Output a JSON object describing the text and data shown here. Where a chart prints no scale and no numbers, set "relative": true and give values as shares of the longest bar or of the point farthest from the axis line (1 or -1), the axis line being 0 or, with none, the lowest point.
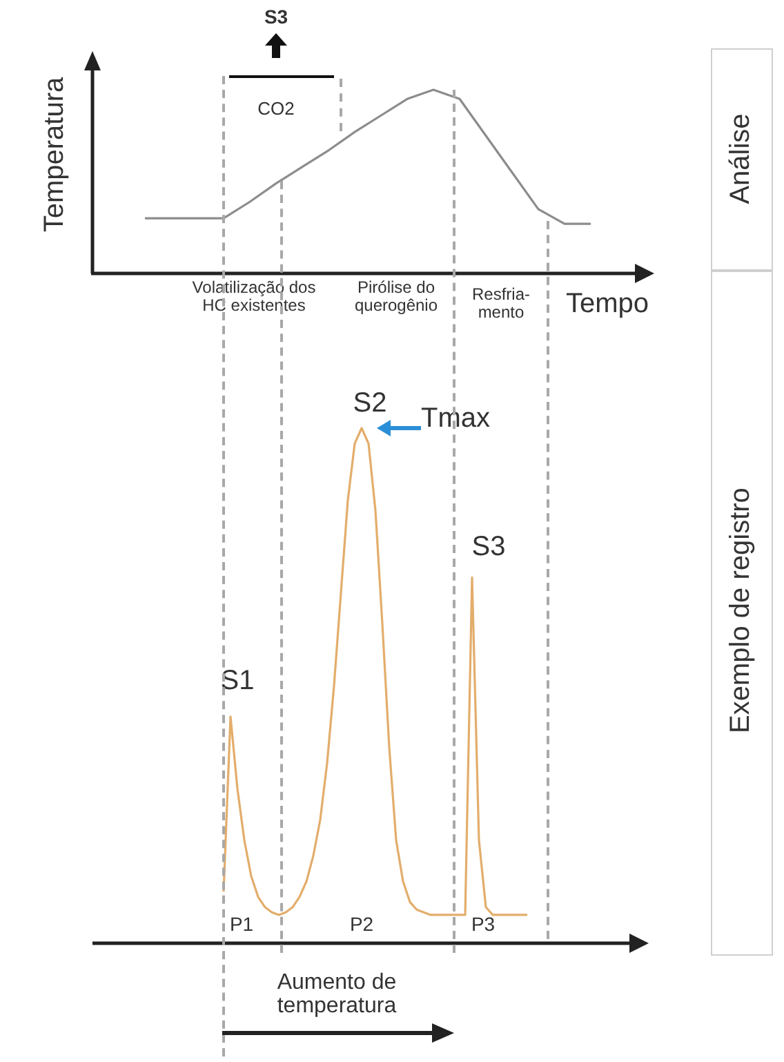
{
  "chart_data": [
    {
      "type": "line",
      "xlabel": "Tempo",
      "ylabel": "Temperatura",
      "relative": true,
      "legend": false,
      "grid": false,
      "tick_labels": false,
      "marker": "none",
      "color": "#8c8c8c",
      "categories": [
        null,
        null,
        null,
        null,
        null,
        null,
        null,
        null,
        null,
        null,
        null,
        null,
        null,
        null,
        null,
        null,
        null,
        null,
        null,
        null,
        null,
        null
      ],
      "values": [
        null,
        null,
        0.3,
        0.3,
        0.3,
        0.3,
        0.39,
        0.49,
        0.58,
        0.67,
        0.77,
        0.86,
        0.95,
        1.0,
        0.95,
        0.75,
        0.55,
        0.35,
        0.27,
        0.27,
        null,
        null
      ],
      "annotations": [
        "S3",
        "CO2",
        "Volatilização dos HC existentes",
        "Pirólise do querogênio",
        "Resfria-mento",
        "Análise"
      ]
    },
    {
      "type": "line",
      "xlabel": "Aumento de temperatura",
      "relative": true,
      "legend": false,
      "grid": false,
      "tick_labels": false,
      "marker": "none",
      "color": "#e3ad6b",
      "categories": [
        null,
        null,
        null,
        null,
        null,
        null,
        null,
        null,
        null,
        null,
        null,
        null,
        null,
        null,
        null,
        null,
        null,
        null,
        null,
        null,
        null,
        null,
        null,
        null,
        null,
        null,
        null,
        null,
        null,
        null,
        null,
        null,
        null,
        null,
        null,
        null,
        null,
        null,
        null,
        null,
        null,
        null,
        null,
        null,
        null,
        null,
        null,
        null,
        null,
        null,
        null,
        null,
        null,
        null,
        null,
        null,
        null,
        null,
        null,
        null,
        null,
        null,
        null,
        null,
        null,
        null,
        null,
        null,
        null,
        null,
        null,
        null,
        null,
        null,
        null,
        null,
        null,
        null,
        null,
        null
      ],
      "values": [
        null,
        null,
        null,
        null,
        null,
        null,
        null,
        null,
        null,
        null,
        null,
        null,
        null,
        null,
        null,
        null,
        null,
        null,
        null,
        0.1,
        0.44,
        0.3,
        0.2,
        0.13,
        0.09,
        0.07,
        0.06,
        0.055,
        0.06,
        0.07,
        0.09,
        0.12,
        0.17,
        0.24,
        0.35,
        0.5,
        0.68,
        0.86,
        0.97,
        1.0,
        0.97,
        0.84,
        0.62,
        0.38,
        0.2,
        0.12,
        0.08,
        0.065,
        0.06,
        0.055,
        0.055,
        0.055,
        0.055,
        0.055,
        0.055,
        0.71,
        0.2,
        0.07,
        0.055,
        0.055,
        0.055,
        0.055,
        0.055,
        0.055,
        null,
        null,
        null,
        null,
        null,
        null,
        null,
        null,
        null,
        null,
        null,
        null,
        null,
        null,
        null,
        null
      ],
      "annotations": [
        "S1",
        "S2",
        "Tmax",
        "S3",
        "P1",
        "P2",
        "P3",
        "Exemplo de registro"
      ]
    }
  ]
}
